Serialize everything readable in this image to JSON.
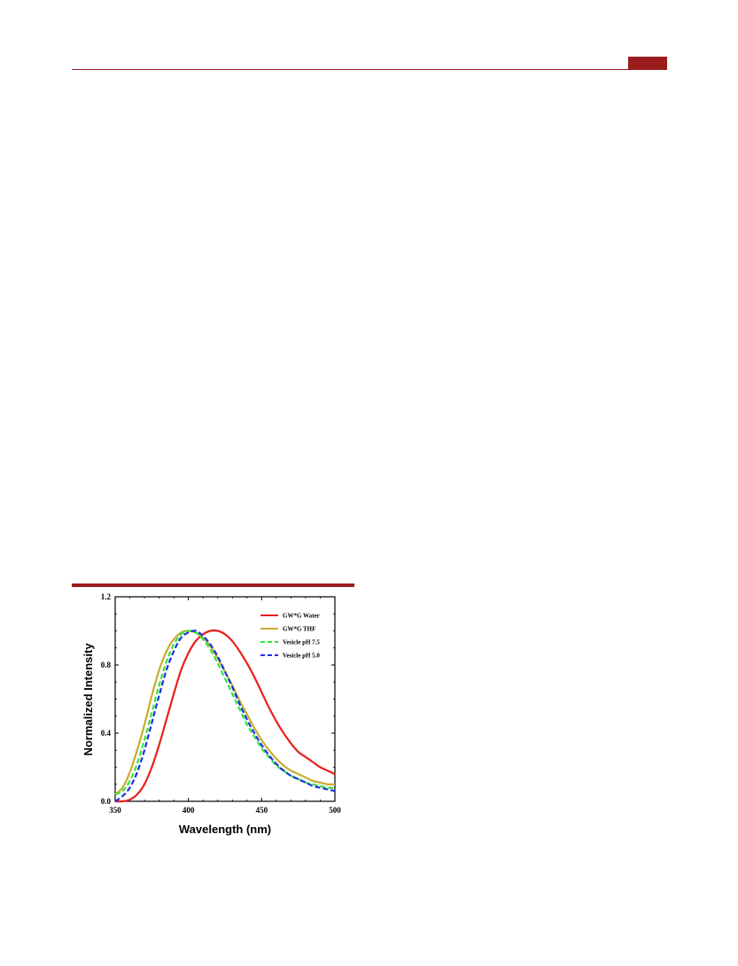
{
  "colors": {
    "accent": "#9b1c1c"
  },
  "chart_data": {
    "type": "line",
    "xlabel": "Wavelength (nm)",
    "ylabel": "Normalized Intensity",
    "xlim": [
      350,
      500
    ],
    "ylim": [
      0.0,
      1.2
    ],
    "x_ticks": [
      "350",
      "400",
      "450",
      "500"
    ],
    "y_ticks": [
      "0.0",
      "0.4",
      "0.8",
      "1.2"
    ],
    "legend_position": "top-right",
    "grid": false,
    "series": [
      {
        "name": "GW*G Water",
        "color": "#e8201c",
        "dash": "solid",
        "x": [
          350,
          355,
          360,
          365,
          370,
          375,
          380,
          385,
          390,
          395,
          400,
          405,
          410,
          415,
          420,
          425,
          430,
          435,
          440,
          445,
          450,
          455,
          460,
          465,
          470,
          475,
          480,
          485,
          490,
          495,
          500
        ],
        "y": [
          0.0,
          0.0,
          0.01,
          0.04,
          0.1,
          0.2,
          0.33,
          0.48,
          0.63,
          0.77,
          0.87,
          0.94,
          0.98,
          1.0,
          1.0,
          0.98,
          0.94,
          0.88,
          0.81,
          0.73,
          0.64,
          0.55,
          0.47,
          0.4,
          0.34,
          0.29,
          0.26,
          0.23,
          0.2,
          0.18,
          0.16
        ]
      },
      {
        "name": "GW*G THF",
        "color": "#c9ac2e",
        "dash": "solid",
        "x": [
          350,
          355,
          360,
          365,
          370,
          375,
          380,
          385,
          390,
          395,
          400,
          405,
          410,
          415,
          420,
          425,
          430,
          435,
          440,
          445,
          450,
          455,
          460,
          465,
          470,
          475,
          480,
          485,
          490,
          495,
          500
        ],
        "y": [
          0.04,
          0.08,
          0.17,
          0.3,
          0.45,
          0.62,
          0.77,
          0.88,
          0.95,
          0.99,
          1.0,
          0.99,
          0.96,
          0.91,
          0.84,
          0.76,
          0.68,
          0.59,
          0.51,
          0.43,
          0.36,
          0.3,
          0.25,
          0.21,
          0.18,
          0.16,
          0.14,
          0.12,
          0.11,
          0.1,
          0.1
        ]
      },
      {
        "name": "Vesicle pH 7.5",
        "color": "#2ee83c",
        "dash": "dashed",
        "x": [
          350,
          355,
          360,
          365,
          370,
          375,
          380,
          385,
          390,
          395,
          400,
          405,
          410,
          415,
          420,
          425,
          430,
          435,
          440,
          445,
          450,
          455,
          460,
          465,
          470,
          475,
          480,
          485,
          490,
          495,
          500
        ],
        "y": [
          0.04,
          0.06,
          0.12,
          0.22,
          0.36,
          0.52,
          0.68,
          0.82,
          0.92,
          0.98,
          1.0,
          0.99,
          0.95,
          0.89,
          0.81,
          0.72,
          0.63,
          0.54,
          0.45,
          0.38,
          0.31,
          0.26,
          0.21,
          0.18,
          0.15,
          0.13,
          0.11,
          0.1,
          0.09,
          0.08,
          0.08
        ]
      },
      {
        "name": "Vesicle pH 5.0",
        "color": "#1c2ee8",
        "dash": "dashed",
        "x": [
          350,
          355,
          360,
          365,
          370,
          375,
          380,
          385,
          390,
          395,
          400,
          405,
          410,
          415,
          420,
          425,
          430,
          435,
          440,
          445,
          450,
          455,
          460,
          465,
          470,
          475,
          480,
          485,
          490,
          495,
          500
        ],
        "y": [
          0.0,
          0.03,
          0.08,
          0.17,
          0.3,
          0.46,
          0.62,
          0.77,
          0.88,
          0.96,
          0.99,
          1.0,
          0.97,
          0.92,
          0.85,
          0.76,
          0.67,
          0.57,
          0.48,
          0.4,
          0.33,
          0.27,
          0.22,
          0.18,
          0.15,
          0.13,
          0.11,
          0.09,
          0.08,
          0.07,
          0.06
        ]
      }
    ]
  }
}
